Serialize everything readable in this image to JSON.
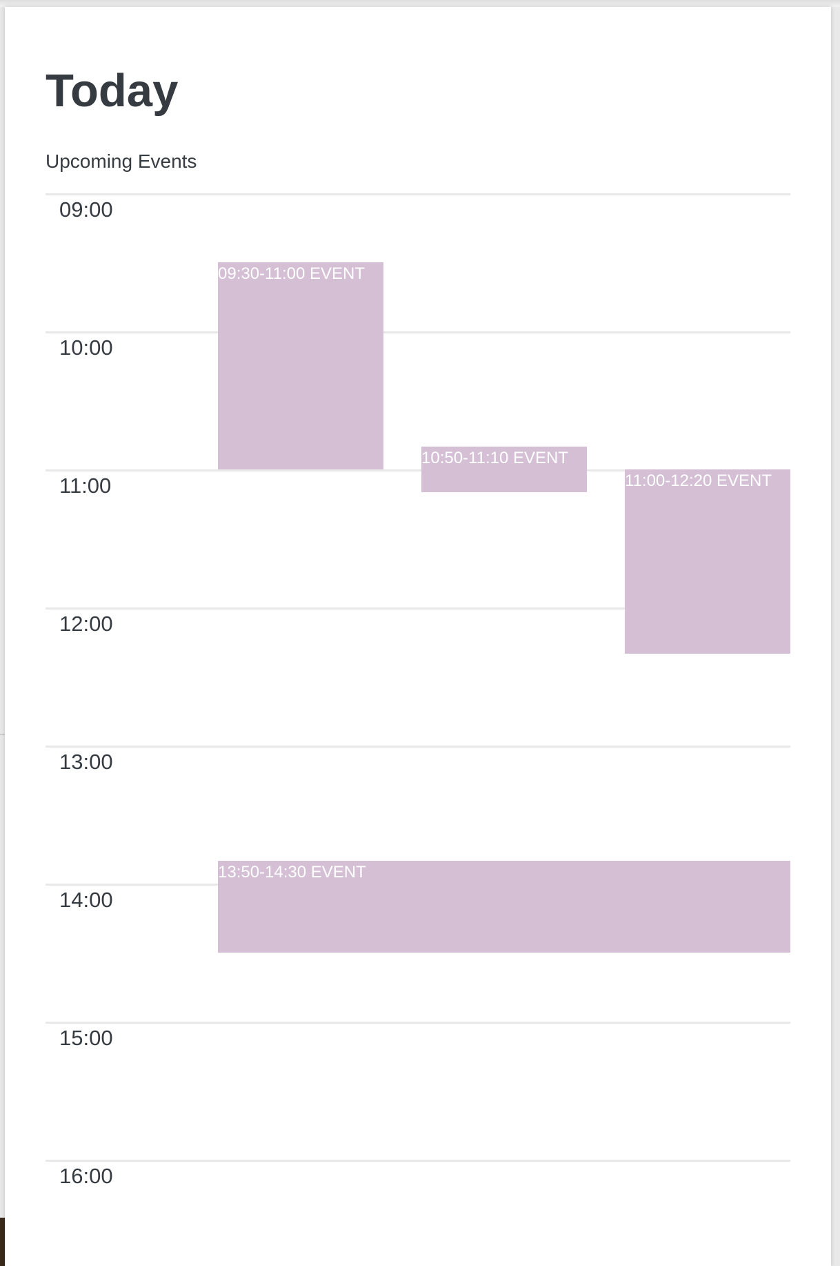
{
  "header": {
    "title": "Today",
    "subtitle": "Upcoming Events"
  },
  "timeline": {
    "start_hour": 9,
    "end_hour": 16,
    "hours": [
      "09:00",
      "10:00",
      "11:00",
      "12:00",
      "13:00",
      "14:00",
      "15:00",
      "16:00"
    ],
    "events": [
      {
        "label": "09:30-11:00 EVENT",
        "start": "09:30",
        "end": "11:00",
        "lane": 0,
        "span": 1,
        "lanes": 3
      },
      {
        "label": "10:50-11:10 EVENT",
        "start": "10:50",
        "end": "11:10",
        "lane": 1,
        "span": 1,
        "lanes": 3
      },
      {
        "label": "11:00-12:20 EVENT",
        "start": "11:00",
        "end": "12:20",
        "lane": 2,
        "span": 1,
        "lanes": 3
      },
      {
        "label": "13:50-14:30 EVENT",
        "start": "13:50",
        "end": "14:30",
        "lane": 0,
        "span": 3,
        "lanes": 3
      }
    ]
  },
  "colors": {
    "event_fill": "#d4bfd5",
    "event_text": "#ffffff",
    "text": "#363b41",
    "grid_line": "#e8e8e8"
  }
}
